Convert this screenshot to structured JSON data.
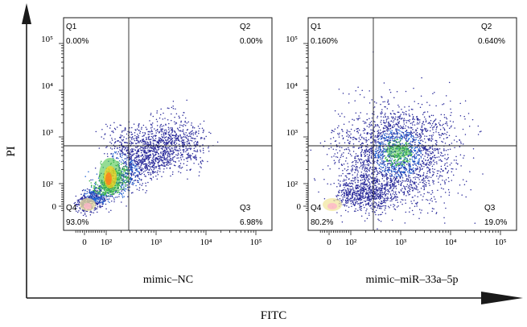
{
  "figure": {
    "y_axis_label": "PI",
    "x_axis_label": "FITC"
  },
  "chart_data": [
    {
      "type": "scatter",
      "subtype": "flow-cytometry-density-dot-plot",
      "title": "mimic–NC",
      "xlabel": "FITC",
      "ylabel": "PI",
      "x_tick_labels": [
        "0",
        "10²",
        "10³",
        "10⁴",
        "10⁵"
      ],
      "y_tick_labels": [
        "0",
        "10²",
        "10³",
        "10⁴",
        "10⁵"
      ],
      "quadrant_gate": {
        "x": 300,
        "y": 600
      },
      "quadrants": [
        {
          "name": "Q1",
          "percent": "0.00%"
        },
        {
          "name": "Q2",
          "percent": "0.00%"
        },
        {
          "name": "Q3",
          "percent": "6.98%"
        },
        {
          "name": "Q4",
          "percent": "93.0%"
        }
      ],
      "population_centers": [
        {
          "x": 20,
          "y": 30
        },
        {
          "x": 120,
          "y": 120
        },
        {
          "x": 400,
          "y": 250
        }
      ]
    },
    {
      "type": "scatter",
      "subtype": "flow-cytometry-density-dot-plot",
      "title": "mimic–miR–33a–5p",
      "xlabel": "FITC",
      "ylabel": "PI",
      "x_tick_labels": [
        "0",
        "10²",
        "10³",
        "10⁴",
        "10⁵"
      ],
      "y_tick_labels": [
        "0",
        "10²",
        "10³",
        "10⁴",
        "10⁵"
      ],
      "quadrant_gate": {
        "x": 300,
        "y": 600
      },
      "quadrants": [
        {
          "name": "Q1",
          "percent": "0.160%"
        },
        {
          "name": "Q2",
          "percent": "0.640%"
        },
        {
          "name": "Q3",
          "percent": "19.0%"
        },
        {
          "name": "Q4",
          "percent": "80.2%"
        }
      ],
      "population_centers": [
        {
          "x": 20,
          "y": 30
        },
        {
          "x": 600,
          "y": 500
        }
      ]
    }
  ]
}
